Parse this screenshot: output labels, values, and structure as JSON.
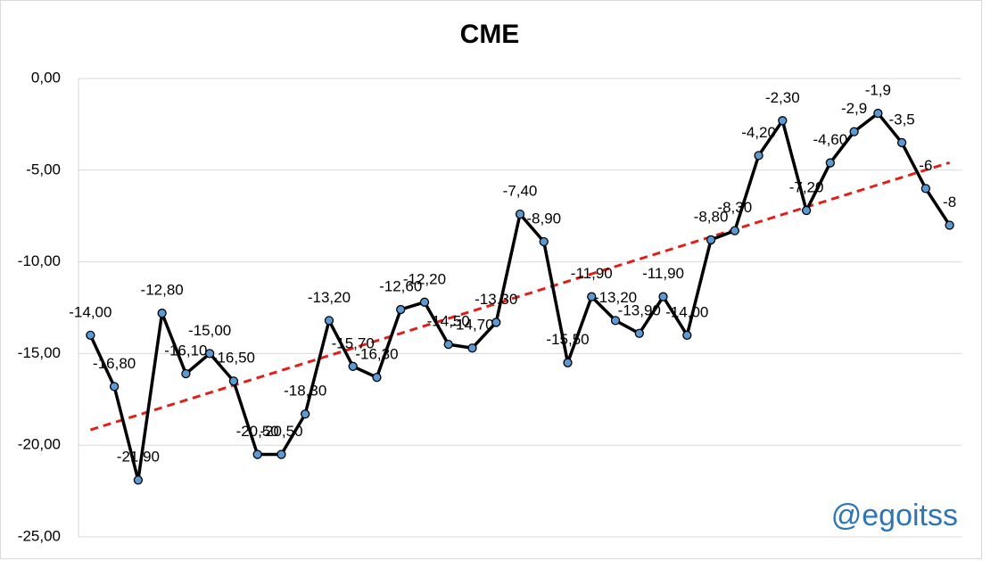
{
  "chart_data": {
    "type": "line",
    "title": "CME",
    "annotation": "@egoitss",
    "series": [
      {
        "name": "CME",
        "color": "#000000",
        "marker_color": "#5b9bd5",
        "values": [
          -14.0,
          -16.8,
          -21.9,
          -12.8,
          -16.1,
          -15.0,
          -16.5,
          -20.5,
          -20.5,
          -18.3,
          -13.2,
          -15.7,
          -16.3,
          -12.6,
          -12.2,
          -14.5,
          -14.7,
          -13.3,
          -7.4,
          -8.9,
          -15.5,
          -11.9,
          -13.2,
          -13.9,
          -11.9,
          -14.0,
          -8.8,
          -8.3,
          -4.2,
          -2.3,
          -7.2,
          -4.6,
          -2.9,
          -1.9,
          -3.5,
          -6,
          -8
        ],
        "value_labels": [
          "-14,00",
          "-16,80",
          "-21,90",
          "-12,80",
          "-16,10",
          "-15,00",
          "-16,50",
          "-20,50",
          "-20,50",
          "-18,30",
          "-13,20",
          "-15,70",
          "-16,30",
          "-12,60",
          "-12,20",
          "-14,50",
          "-14,70",
          "-13,30",
          "-7,40",
          "-8,90",
          "-15,50",
          "-11,90",
          "-13,20",
          "-13,90",
          "-11,90",
          "-14,00",
          "-8,80",
          "-8,30",
          "-4,20",
          "-2,30",
          "-7,20",
          "-4,60",
          "-2,9",
          "-1,9",
          "-3,5",
          "-6",
          "-8"
        ]
      }
    ],
    "trendline": {
      "type": "linear",
      "color": "#e0201b"
    },
    "ylim": [
      -25,
      0
    ],
    "yticks": [
      {
        "value": 0,
        "label": "0,00"
      },
      {
        "value": -5,
        "label": "-5,00"
      },
      {
        "value": -10,
        "label": "-10,00"
      },
      {
        "value": -15,
        "label": "-15,00"
      },
      {
        "value": -20,
        "label": "-20,00"
      },
      {
        "value": -25,
        "label": "-25,00"
      }
    ],
    "grid": true
  }
}
